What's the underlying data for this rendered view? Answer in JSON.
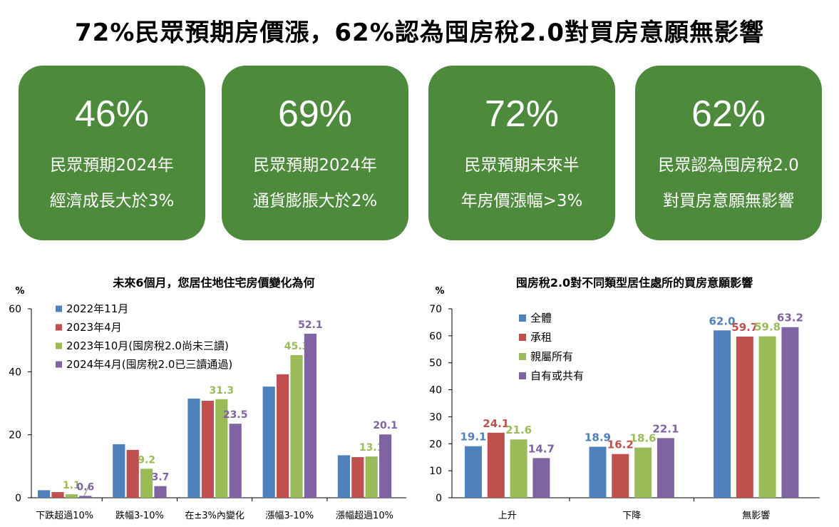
{
  "title": "72%民眾預期房價漲，62%認為囤房稅2.0對買房意願無影響",
  "cards": [
    {
      "value": "46%",
      "line1": "民眾預期2024年",
      "line2": "經濟成長大於3%"
    },
    {
      "value": "69%",
      "line1": "民眾預期2024年",
      "line2": "通貨膨脹大於2%"
    },
    {
      "value": "72%",
      "line1": "民眾預期未來半",
      "line2": "年房價漲幅>3%"
    },
    {
      "value": "62%",
      "line1": "民眾認為囤房稅2.0",
      "line2": "對買房意願無影響"
    }
  ],
  "colors": {
    "card": "#4e8a3c",
    "blue": "#4f81bd",
    "red": "#c0504d",
    "green": "#9bbb59",
    "purple": "#8064a2"
  },
  "chart_data": [
    {
      "type": "bar",
      "title": "未來6個月，您居住地住宅房價變化為何",
      "ylabel": "%",
      "ylim": [
        0,
        60
      ],
      "yticks": [
        0,
        20,
        40,
        60
      ],
      "legend_position": "top-left",
      "categories": [
        "下跌超過10%",
        "跌幅3-10%",
        "在±3%內變化",
        "漲幅3-10%",
        "漲幅超過10%"
      ],
      "series": [
        {
          "name": "2022年11月",
          "color": "#4f81bd",
          "values": [
            2.4,
            17.0,
            31.5,
            35.3,
            13.5
          ],
          "labels": [
            null,
            null,
            null,
            null,
            null
          ]
        },
        {
          "name": "2023年4月",
          "color": "#c0504d",
          "values": [
            1.8,
            15.2,
            30.8,
            39.2,
            12.9
          ],
          "labels": [
            null,
            null,
            null,
            null,
            null
          ]
        },
        {
          "name": "2023年10月(囤房稅2.0尚未三讀)",
          "color": "#9bbb59",
          "values": [
            1.1,
            9.2,
            31.3,
            45.3,
            13.1
          ],
          "labels": [
            "1.1",
            "9.2",
            "31.3",
            "45.3",
            "13.1"
          ]
        },
        {
          "name": "2024年4月(囤房稅2.0已三讀通過)",
          "color": "#8064a2",
          "values": [
            0.6,
            3.7,
            23.5,
            52.1,
            20.1
          ],
          "labels": [
            "0.6",
            "3.7",
            "23.5",
            "52.1",
            "20.1"
          ]
        }
      ]
    },
    {
      "type": "bar",
      "title": "囤房稅2.0對不同類型居住處所的買房意願影響",
      "ylabel": "%",
      "ylim": [
        0,
        70
      ],
      "yticks": [
        0,
        10,
        20,
        30,
        40,
        50,
        60,
        70
      ],
      "legend_position": "top-left",
      "categories": [
        "上升",
        "下降",
        "無影響"
      ],
      "series": [
        {
          "name": "全體",
          "color": "#4f81bd",
          "values": [
            19.1,
            18.9,
            62.0
          ],
          "labels": [
            "19.1",
            "18.9",
            "62.0"
          ]
        },
        {
          "name": "承租",
          "color": "#c0504d",
          "values": [
            24.1,
            16.2,
            59.7
          ],
          "labels": [
            "24.1",
            "16.2",
            "59.7"
          ]
        },
        {
          "name": "親屬所有",
          "color": "#9bbb59",
          "values": [
            21.6,
            18.6,
            59.8
          ],
          "labels": [
            "21.6",
            "18.6",
            "59.8"
          ]
        },
        {
          "name": "自有或共有",
          "color": "#8064a2",
          "values": [
            14.7,
            22.1,
            63.2
          ],
          "labels": [
            "14.7",
            "22.1",
            "63.2"
          ]
        }
      ]
    }
  ]
}
